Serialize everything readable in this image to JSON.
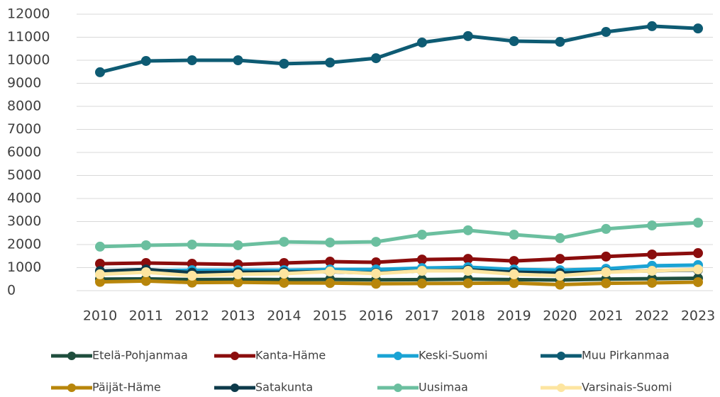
{
  "chart_data": {
    "type": "line",
    "x": [
      2010,
      2011,
      2012,
      2013,
      2014,
      2015,
      2016,
      2017,
      2018,
      2019,
      2020,
      2021,
      2022,
      2023
    ],
    "xlim": [
      2010,
      2023
    ],
    "ylim": [
      0,
      12000
    ],
    "yticks": [
      0,
      1000,
      2000,
      3000,
      4000,
      5000,
      6000,
      7000,
      8000,
      9000,
      10000,
      11000,
      12000
    ],
    "grid": true,
    "legend": "bottom",
    "series": [
      {
        "name": "Etelä-Pohjanmaa",
        "color": "#1f4e3d",
        "values": [
          500,
          510,
          480,
          490,
          480,
          490,
          470,
          480,
          500,
          480,
          460,
          500,
          520,
          540
        ]
      },
      {
        "name": "Kanta-Häme",
        "color": "#8b0d0d",
        "values": [
          1170,
          1200,
          1170,
          1140,
          1200,
          1260,
          1230,
          1350,
          1380,
          1290,
          1380,
          1480,
          1570,
          1630
        ]
      },
      {
        "name": "Keski-Suomi",
        "color": "#1aa3d4",
        "values": [
          800,
          860,
          890,
          890,
          890,
          920,
          920,
          980,
          1020,
          920,
          890,
          950,
          1080,
          1110
        ]
      },
      {
        "name": "Muu Pirkanmaa",
        "color": "#0e5b73",
        "values": [
          9480,
          9970,
          10000,
          10000,
          9850,
          9900,
          10090,
          10770,
          11050,
          10830,
          10800,
          11230,
          11480,
          11380
        ]
      },
      {
        "name": "Päijät-Häme",
        "color": "#b8860b",
        "values": [
          380,
          420,
          350,
          360,
          340,
          330,
          300,
          310,
          320,
          330,
          260,
          320,
          340,
          370
        ]
      },
      {
        "name": "Satakunta",
        "color": "#0d3a4a",
        "values": [
          850,
          920,
          780,
          800,
          800,
          820,
          760,
          860,
          900,
          800,
          760,
          820,
          860,
          900
        ]
      },
      {
        "name": "Uusimaa",
        "color": "#6bbf9f",
        "values": [
          1910,
          1970,
          2000,
          1970,
          2120,
          2090,
          2120,
          2430,
          2620,
          2430,
          2280,
          2680,
          2830,
          2950
        ]
      },
      {
        "name": "Varsinais-Suomi",
        "color": "#fde5a0",
        "values": [
          710,
          800,
          650,
          710,
          740,
          830,
          740,
          860,
          860,
          710,
          650,
          800,
          860,
          920
        ]
      }
    ]
  }
}
